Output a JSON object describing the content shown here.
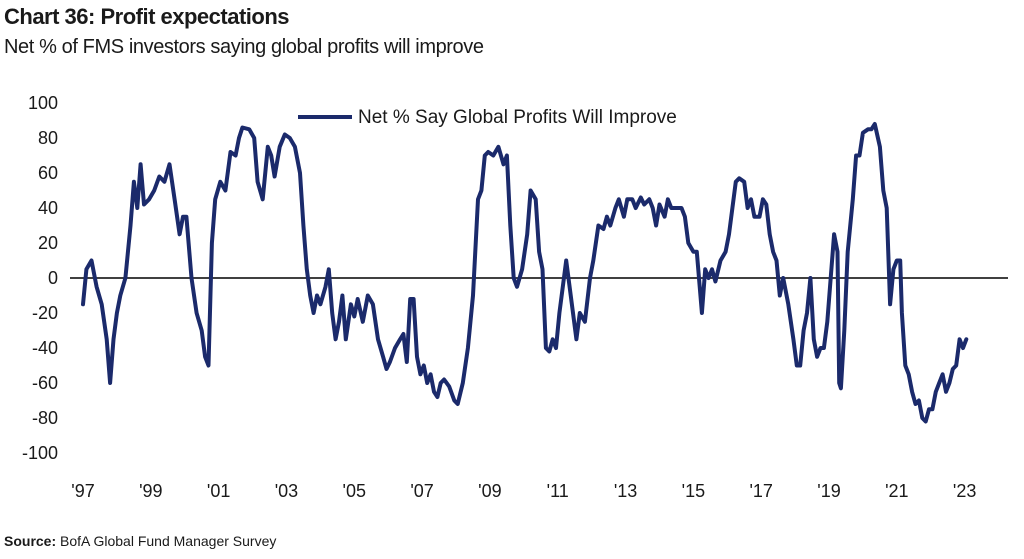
{
  "header": {
    "title": "Chart 36: Profit expectations",
    "subtitle": "Net % of FMS investors saying global profits will improve"
  },
  "footer": {
    "source_label": "Source:",
    "source_text": "BofA Global Fund Manager Survey"
  },
  "colors": {
    "series": "#1b2a6b",
    "axis": "#000000",
    "text": "#1a1a1a"
  },
  "chart_data": {
    "type": "line",
    "title": "Chart 36: Profit expectations",
    "subtitle": "Net % of FMS investors saying global profits will improve",
    "xlabel": "",
    "ylabel": "",
    "ylim": [
      -100,
      100
    ],
    "xlim": [
      1997.0,
      2023.6
    ],
    "yticks": [
      100,
      80,
      60,
      40,
      20,
      0,
      -20,
      -40,
      -60,
      -80,
      -100
    ],
    "xticks": [
      {
        "value": 1997,
        "label": "'97"
      },
      {
        "value": 1999,
        "label": "'99"
      },
      {
        "value": 2001,
        "label": "'01"
      },
      {
        "value": 2003,
        "label": "'03"
      },
      {
        "value": 2005,
        "label": "'05"
      },
      {
        "value": 2007,
        "label": "'07"
      },
      {
        "value": 2009,
        "label": "'09"
      },
      {
        "value": 2011,
        "label": "'11"
      },
      {
        "value": 2013,
        "label": "'13"
      },
      {
        "value": 2015,
        "label": "'15"
      },
      {
        "value": 2017,
        "label": "'17"
      },
      {
        "value": 2019,
        "label": "'19"
      },
      {
        "value": 2021,
        "label": "'21"
      },
      {
        "value": 2023,
        "label": "'23"
      }
    ],
    "grid": false,
    "legend": "top-center",
    "series": [
      {
        "name": "Net % Say Global Profits Will Improve",
        "color": "#1b2a6b",
        "points": [
          [
            1997.0,
            -15
          ],
          [
            1997.1,
            5
          ],
          [
            1997.25,
            10
          ],
          [
            1997.4,
            -5
          ],
          [
            1997.55,
            -15
          ],
          [
            1997.7,
            -35
          ],
          [
            1997.8,
            -60
          ],
          [
            1997.9,
            -35
          ],
          [
            1998.0,
            -20
          ],
          [
            1998.1,
            -10
          ],
          [
            1998.25,
            0
          ],
          [
            1998.4,
            30
          ],
          [
            1998.5,
            55
          ],
          [
            1998.6,
            40
          ],
          [
            1998.7,
            65
          ],
          [
            1998.8,
            42
          ],
          [
            1998.95,
            45
          ],
          [
            1999.1,
            50
          ],
          [
            1999.25,
            58
          ],
          [
            1999.4,
            55
          ],
          [
            1999.55,
            65
          ],
          [
            1999.7,
            45
          ],
          [
            1999.85,
            25
          ],
          [
            1999.95,
            35
          ],
          [
            2000.05,
            35
          ],
          [
            2000.2,
            0
          ],
          [
            2000.35,
            -20
          ],
          [
            2000.5,
            -30
          ],
          [
            2000.6,
            -45
          ],
          [
            2000.7,
            -50
          ],
          [
            2000.8,
            20
          ],
          [
            2000.9,
            45
          ],
          [
            2001.05,
            55
          ],
          [
            2001.2,
            50
          ],
          [
            2001.35,
            72
          ],
          [
            2001.5,
            70
          ],
          [
            2001.6,
            80
          ],
          [
            2001.7,
            86
          ],
          [
            2001.9,
            85
          ],
          [
            2002.05,
            80
          ],
          [
            2002.15,
            55
          ],
          [
            2002.3,
            45
          ],
          [
            2002.45,
            75
          ],
          [
            2002.55,
            70
          ],
          [
            2002.65,
            58
          ],
          [
            2002.8,
            75
          ],
          [
            2002.95,
            82
          ],
          [
            2003.1,
            80
          ],
          [
            2003.25,
            75
          ],
          [
            2003.4,
            60
          ],
          [
            2003.5,
            30
          ],
          [
            2003.6,
            5
          ],
          [
            2003.7,
            -10
          ],
          [
            2003.8,
            -20
          ],
          [
            2003.9,
            -10
          ],
          [
            2004.0,
            -15
          ],
          [
            2004.15,
            -5
          ],
          [
            2004.25,
            5
          ],
          [
            2004.35,
            -20
          ],
          [
            2004.45,
            -35
          ],
          [
            2004.55,
            -25
          ],
          [
            2004.65,
            -10
          ],
          [
            2004.75,
            -35
          ],
          [
            2004.9,
            -15
          ],
          [
            2005.0,
            -22
          ],
          [
            2005.1,
            -12
          ],
          [
            2005.25,
            -25
          ],
          [
            2005.4,
            -10
          ],
          [
            2005.55,
            -15
          ],
          [
            2005.7,
            -35
          ],
          [
            2005.85,
            -45
          ],
          [
            2005.95,
            -52
          ],
          [
            2006.05,
            -48
          ],
          [
            2006.2,
            -40
          ],
          [
            2006.35,
            -35
          ],
          [
            2006.45,
            -32
          ],
          [
            2006.55,
            -48
          ],
          [
            2006.65,
            -12
          ],
          [
            2006.75,
            -12
          ],
          [
            2006.85,
            -45
          ],
          [
            2006.95,
            -55
          ],
          [
            2007.05,
            -50
          ],
          [
            2007.15,
            -60
          ],
          [
            2007.25,
            -55
          ],
          [
            2007.35,
            -65
          ],
          [
            2007.45,
            -68
          ],
          [
            2007.55,
            -60
          ],
          [
            2007.65,
            -58
          ],
          [
            2007.8,
            -62
          ],
          [
            2007.95,
            -70
          ],
          [
            2008.05,
            -72
          ],
          [
            2008.2,
            -60
          ],
          [
            2008.35,
            -40
          ],
          [
            2008.5,
            -10
          ],
          [
            2008.65,
            45
          ],
          [
            2008.75,
            50
          ],
          [
            2008.85,
            70
          ],
          [
            2008.95,
            72
          ],
          [
            2009.1,
            70
          ],
          [
            2009.25,
            75
          ],
          [
            2009.4,
            65
          ],
          [
            2009.5,
            70
          ],
          [
            2009.6,
            30
          ],
          [
            2009.7,
            0
          ],
          [
            2009.8,
            -5
          ],
          [
            2009.95,
            5
          ],
          [
            2010.1,
            25
          ],
          [
            2010.2,
            50
          ],
          [
            2010.35,
            45
          ],
          [
            2010.45,
            15
          ],
          [
            2010.55,
            5
          ],
          [
            2010.65,
            -40
          ],
          [
            2010.75,
            -42
          ],
          [
            2010.85,
            -35
          ],
          [
            2010.95,
            -40
          ],
          [
            2011.05,
            -20
          ],
          [
            2011.15,
            -5
          ],
          [
            2011.25,
            10
          ],
          [
            2011.35,
            -5
          ],
          [
            2011.45,
            -20
          ],
          [
            2011.55,
            -35
          ],
          [
            2011.65,
            -20
          ],
          [
            2011.8,
            -25
          ],
          [
            2011.95,
            0
          ],
          [
            2012.05,
            10
          ],
          [
            2012.2,
            30
          ],
          [
            2012.35,
            28
          ],
          [
            2012.45,
            35
          ],
          [
            2012.55,
            30
          ],
          [
            2012.7,
            40
          ],
          [
            2012.8,
            45
          ],
          [
            2012.95,
            35
          ],
          [
            2013.05,
            45
          ],
          [
            2013.2,
            45
          ],
          [
            2013.3,
            40
          ],
          [
            2013.45,
            46
          ],
          [
            2013.55,
            42
          ],
          [
            2013.7,
            45
          ],
          [
            2013.8,
            40
          ],
          [
            2013.9,
            30
          ],
          [
            2014.0,
            42
          ],
          [
            2014.15,
            35
          ],
          [
            2014.25,
            45
          ],
          [
            2014.35,
            40
          ],
          [
            2014.5,
            40
          ],
          [
            2014.65,
            40
          ],
          [
            2014.75,
            35
          ],
          [
            2014.85,
            20
          ],
          [
            2015.0,
            15
          ],
          [
            2015.1,
            15
          ],
          [
            2015.25,
            -20
          ],
          [
            2015.35,
            5
          ],
          [
            2015.45,
            0
          ],
          [
            2015.55,
            5
          ],
          [
            2015.65,
            -2
          ],
          [
            2015.8,
            10
          ],
          [
            2015.95,
            15
          ],
          [
            2016.05,
            25
          ],
          [
            2016.15,
            40
          ],
          [
            2016.25,
            55
          ],
          [
            2016.35,
            57
          ],
          [
            2016.5,
            55
          ],
          [
            2016.6,
            40
          ],
          [
            2016.7,
            45
          ],
          [
            2016.8,
            35
          ],
          [
            2016.95,
            35
          ],
          [
            2017.05,
            45
          ],
          [
            2017.15,
            42
          ],
          [
            2017.25,
            25
          ],
          [
            2017.35,
            15
          ],
          [
            2017.45,
            10
          ],
          [
            2017.55,
            -10
          ],
          [
            2017.65,
            0
          ],
          [
            2017.8,
            -15
          ],
          [
            2017.95,
            -35
          ],
          [
            2018.05,
            -50
          ],
          [
            2018.15,
            -50
          ],
          [
            2018.25,
            -30
          ],
          [
            2018.35,
            -20
          ],
          [
            2018.45,
            0
          ],
          [
            2018.55,
            -35
          ],
          [
            2018.65,
            -45
          ],
          [
            2018.75,
            -40
          ],
          [
            2018.85,
            -40
          ],
          [
            2018.95,
            -25
          ],
          [
            2019.05,
            0
          ],
          [
            2019.15,
            25
          ],
          [
            2019.25,
            15
          ],
          [
            2019.3,
            -60
          ],
          [
            2019.35,
            -63
          ],
          [
            2019.45,
            -30
          ],
          [
            2019.55,
            15
          ],
          [
            2019.7,
            45
          ],
          [
            2019.8,
            70
          ],
          [
            2019.9,
            70
          ],
          [
            2020.0,
            83
          ],
          [
            2020.15,
            85
          ],
          [
            2020.25,
            85
          ],
          [
            2020.35,
            88
          ],
          [
            2020.5,
            75
          ],
          [
            2020.6,
            50
          ],
          [
            2020.7,
            40
          ],
          [
            2020.8,
            -15
          ],
          [
            2020.9,
            5
          ],
          [
            2021.0,
            10
          ],
          [
            2021.1,
            10
          ],
          [
            2021.15,
            -20
          ],
          [
            2021.25,
            -50
          ],
          [
            2021.35,
            -55
          ],
          [
            2021.45,
            -65
          ],
          [
            2021.55,
            -72
          ],
          [
            2021.65,
            -70
          ],
          [
            2021.75,
            -80
          ],
          [
            2021.85,
            -82
          ],
          [
            2021.95,
            -75
          ],
          [
            2022.05,
            -75
          ],
          [
            2022.15,
            -65
          ],
          [
            2022.25,
            -60
          ],
          [
            2022.35,
            -55
          ],
          [
            2022.45,
            -65
          ],
          [
            2022.55,
            -60
          ],
          [
            2022.65,
            -52
          ],
          [
            2022.75,
            -50
          ],
          [
            2022.85,
            -35
          ],
          [
            2022.95,
            -40
          ],
          [
            2023.05,
            -35
          ]
        ]
      }
    ]
  }
}
